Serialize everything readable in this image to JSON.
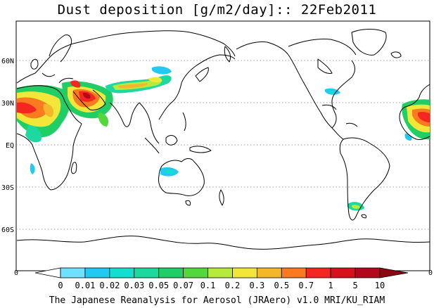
{
  "title": "Dust deposition [g/m2/day]:: 22Feb2011",
  "credit": "The Japanese Reanalysis for Aerosol (JRAero) v1.0 MRI/KU_RIAM",
  "map": {
    "projection": "equirectangular, centered near 160E",
    "lat_labels": [
      {
        "text": "60N",
        "lat": 60
      },
      {
        "text": "30N",
        "lat": 30
      },
      {
        "text": "EQ",
        "lat": 0
      },
      {
        "text": "30S",
        "lat": -30
      },
      {
        "text": "60S",
        "lat": -60
      }
    ],
    "axis_corner_labels": {
      "bottom_left": "0",
      "bottom_right": "0"
    },
    "gridline_style": "dotted",
    "features": [
      {
        "name": "Sahara",
        "intensity": "high"
      },
      {
        "name": "Arabian Peninsula",
        "intensity": "high"
      },
      {
        "name": "Taklimakan / Gobi",
        "intensity": "medium"
      },
      {
        "name": "Australia",
        "intensity": "low"
      },
      {
        "name": "Patagonia",
        "intensity": "low"
      },
      {
        "name": "Eastern North America",
        "intensity": "low"
      }
    ]
  },
  "legend": {
    "tick_labels": [
      "0",
      "0.01",
      "0.02",
      "0.03",
      "0.05",
      "0.07",
      "0.1",
      "0.2",
      "0.3",
      "0.5",
      "0.7",
      "1",
      "5",
      "10"
    ],
    "colors": [
      "#ffffff",
      "#6fe0ff",
      "#22c9f0",
      "#12dfcf",
      "#1dd9a0",
      "#1fcf65",
      "#52d83a",
      "#b6ea3c",
      "#f2e638",
      "#f6b629",
      "#f97a1f",
      "#f52520",
      "#d8101c",
      "#b3071b",
      "#8c0613"
    ]
  }
}
